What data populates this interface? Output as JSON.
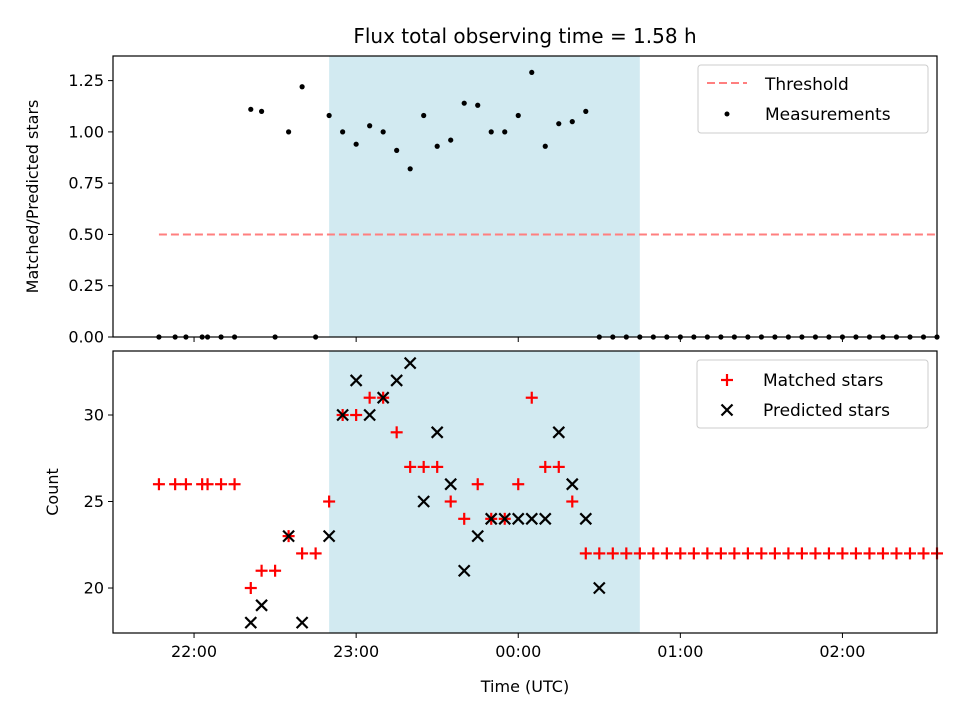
{
  "chart_data": [
    {
      "type": "scatter",
      "panel": "top",
      "title": "Flux total observing time = 1.58 h",
      "ylabel": "Matched/Predicted stars",
      "xlabel": "",
      "xlim": [
        "21:30",
        "02:35"
      ],
      "ylim": [
        0,
        1.37
      ],
      "yticks": [
        "0.00",
        "0.25",
        "0.50",
        "0.75",
        "1.00",
        "1.25"
      ],
      "ytick_values": [
        0,
        0.25,
        0.5,
        0.75,
        1.0,
        1.25
      ],
      "xticks": [
        "22:00",
        "23:00",
        "00:00",
        "01:00",
        "02:00"
      ],
      "xtick_values": [
        "22:00",
        "23:00",
        "00:00",
        "01:00",
        "02:00"
      ],
      "shaded_region": {
        "x_start": "22:50",
        "x_end": "00:45",
        "color": "#add8e6"
      },
      "grid": false,
      "legend_position": "top-right",
      "series": [
        {
          "name": "Threshold",
          "kind": "line",
          "style": "dashed",
          "color": "#ff7f7f",
          "x": [
            "21:47",
            "02:35"
          ],
          "y": [
            0.5,
            0.5
          ]
        },
        {
          "name": "Measurements",
          "kind": "scatter",
          "color": "#000000",
          "x": [
            "21:47",
            "21:53",
            "21:57",
            "22:03",
            "22:05",
            "22:10",
            "22:15",
            "22:21",
            "22:25",
            "22:30",
            "22:35",
            "22:40",
            "22:45",
            "22:50",
            "22:55",
            "23:00",
            "23:05",
            "23:10",
            "23:15",
            "23:20",
            "23:25",
            "23:30",
            "23:35",
            "23:40",
            "23:45",
            "23:50",
            "23:55",
            "00:00",
            "00:05",
            "00:10",
            "00:15",
            "00:20",
            "00:25",
            "00:30",
            "00:35",
            "00:40",
            "00:45",
            "00:50",
            "00:55",
            "01:00",
            "01:05",
            "01:10",
            "01:15",
            "01:20",
            "01:25",
            "01:30",
            "01:35",
            "01:40",
            "01:45",
            "01:50",
            "01:55",
            "02:00",
            "02:05",
            "02:10",
            "02:15",
            "02:20",
            "02:25",
            "02:30",
            "02:35"
          ],
          "y": [
            0,
            0,
            0,
            0,
            0,
            0,
            0,
            1.11,
            1.1,
            0,
            1.0,
            1.22,
            0,
            1.08,
            1.0,
            0.94,
            1.03,
            1.0,
            0.91,
            0.82,
            1.08,
            0.93,
            0.96,
            1.14,
            1.13,
            1.0,
            1.0,
            1.08,
            1.29,
            0.93,
            1.04,
            1.05,
            1.1,
            0,
            0,
            0,
            0,
            0,
            0,
            0,
            0,
            0,
            0,
            0,
            0,
            0,
            0,
            0,
            0,
            0,
            0,
            0,
            0,
            0,
            0,
            0,
            0,
            0,
            0
          ]
        }
      ]
    },
    {
      "type": "scatter",
      "panel": "bottom",
      "title": "",
      "ylabel": "Count",
      "xlabel": "Time (UTC)",
      "xlim": [
        "21:30",
        "02:35"
      ],
      "ylim": [
        17.4,
        33.7
      ],
      "yticks": [
        "20",
        "25",
        "30"
      ],
      "ytick_values": [
        20,
        25,
        30
      ],
      "xticks": [
        "22:00",
        "23:00",
        "00:00",
        "01:00",
        "02:00"
      ],
      "xtick_values": [
        "22:00",
        "23:00",
        "00:00",
        "01:00",
        "02:00"
      ],
      "shaded_region": {
        "x_start": "22:50",
        "x_end": "00:45",
        "color": "#add8e6"
      },
      "grid": false,
      "legend_position": "top-right",
      "series": [
        {
          "name": "Matched stars",
          "marker": "+",
          "color": "#ff0000",
          "x": [
            "21:47",
            "21:53",
            "21:57",
            "22:03",
            "22:05",
            "22:10",
            "22:15",
            "22:21",
            "22:25",
            "22:30",
            "22:35",
            "22:40",
            "22:45",
            "22:50",
            "22:55",
            "23:00",
            "23:05",
            "23:10",
            "23:15",
            "23:20",
            "23:25",
            "23:30",
            "23:35",
            "23:40",
            "23:45",
            "23:50",
            "23:55",
            "00:00",
            "00:05",
            "00:10",
            "00:15",
            "00:20",
            "00:25",
            "00:30",
            "00:35",
            "00:40",
            "00:45",
            "00:50",
            "00:55",
            "01:00",
            "01:05",
            "01:10",
            "01:15",
            "01:20",
            "01:25",
            "01:30",
            "01:35",
            "01:40",
            "01:45",
            "01:50",
            "01:55",
            "02:00",
            "02:05",
            "02:10",
            "02:15",
            "02:20",
            "02:25",
            "02:30",
            "02:35"
          ],
          "y": [
            26,
            26,
            26,
            26,
            26,
            26,
            26,
            20,
            21,
            21,
            23,
            22,
            22,
            25,
            30,
            30,
            31,
            31,
            29,
            27,
            27,
            27,
            25,
            24,
            26,
            24,
            24,
            26,
            31,
            27,
            27,
            25,
            22,
            22,
            22,
            22,
            22,
            22,
            22,
            22,
            22,
            22,
            22,
            22,
            22,
            22,
            22,
            22,
            22,
            22,
            22,
            22,
            22,
            22,
            22,
            22,
            22,
            22,
            22
          ]
        },
        {
          "name": "Predicted stars",
          "marker": "x",
          "color": "#000000",
          "x": [
            "22:21",
            "22:25",
            "22:35",
            "22:40",
            "22:50",
            "22:55",
            "23:00",
            "23:05",
            "23:10",
            "23:15",
            "23:20",
            "23:25",
            "23:30",
            "23:35",
            "23:40",
            "23:45",
            "23:50",
            "23:55",
            "00:00",
            "00:05",
            "00:10",
            "00:15",
            "00:20",
            "00:25"
          ],
          "y": [
            18,
            19,
            23,
            18,
            23,
            30,
            32,
            30,
            31,
            32,
            33,
            25,
            29,
            26,
            21,
            23,
            24,
            24,
            24,
            24,
            24,
            29,
            26,
            24
          ]
        },
        {
          "name": "",
          "marker": "x",
          "color": "#000000",
          "x": [
            "00:30"
          ],
          "y": [
            20
          ]
        }
      ]
    }
  ]
}
